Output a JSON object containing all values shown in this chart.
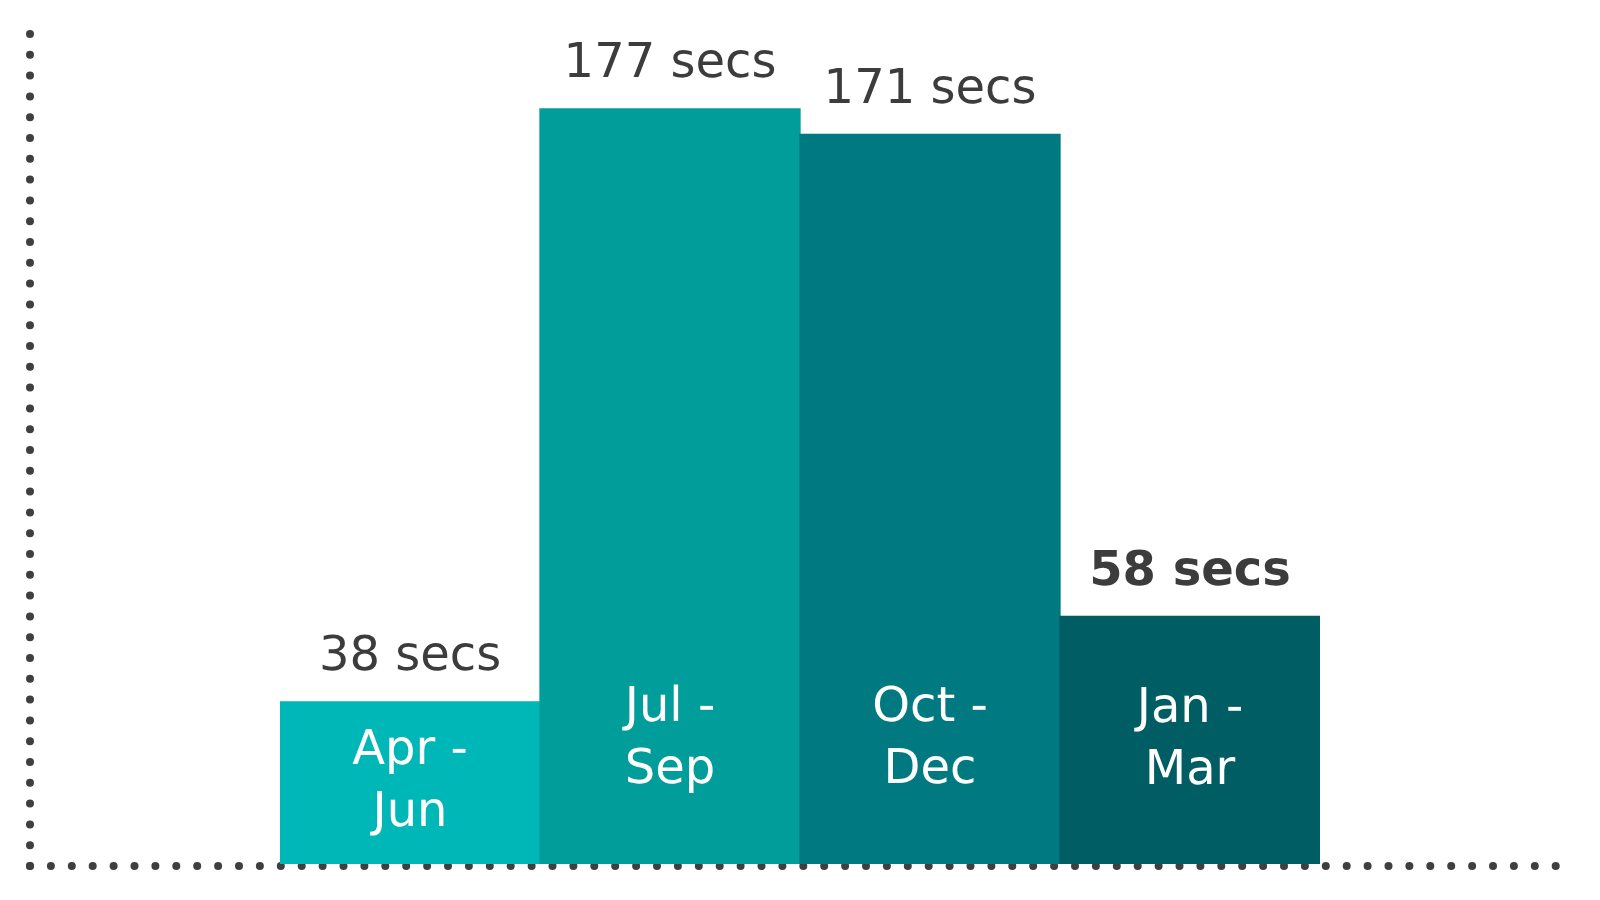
{
  "chart_data": {
    "type": "bar",
    "categories": [
      "Apr - Jun",
      "Jul - Sep",
      "Oct - Dec",
      "Jan - Mar"
    ],
    "values": [
      38,
      177,
      171,
      58
    ],
    "colors": [
      "#00b7b8",
      "#009d9a",
      "#007a80",
      "#005d64"
    ],
    "value_labels": [
      "38 secs",
      "177 secs",
      "171 secs",
      "58 secs"
    ],
    "tick_labels": "x",
    "legend": false
  }
}
